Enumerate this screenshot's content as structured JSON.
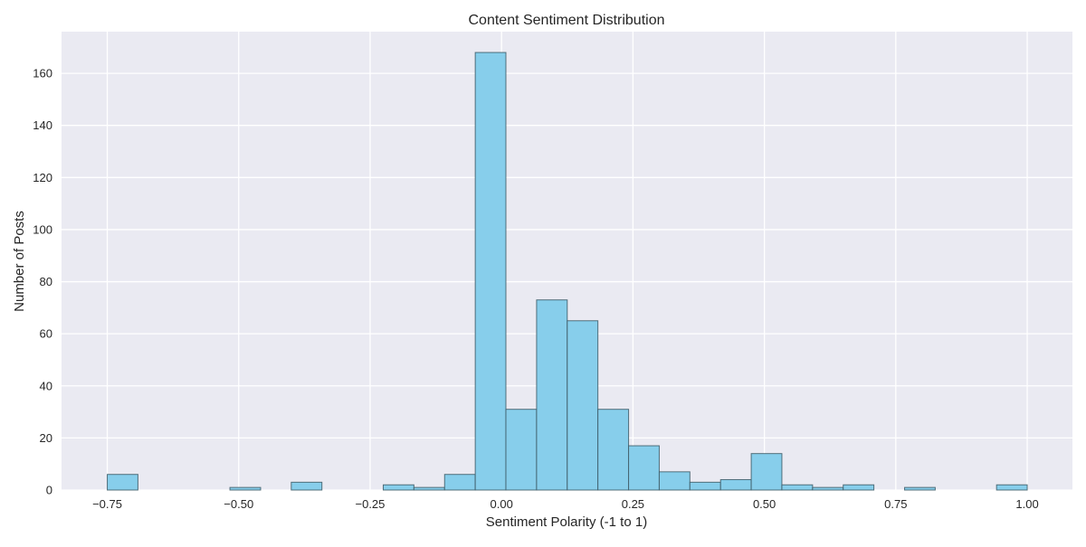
{
  "chart_data": {
    "type": "bar",
    "title": "Content Sentiment Distribution",
    "xlabel": "Sentiment Polarity (-1 to 1)",
    "ylabel": "Number of Posts",
    "xlim": [
      -0.837,
      1.086
    ],
    "ylim": [
      0,
      176
    ],
    "xticks": [
      -0.75,
      -0.5,
      -0.25,
      0.0,
      0.25,
      0.5,
      0.75,
      1.0
    ],
    "xtick_labels": [
      "−0.75",
      "−0.50",
      "−0.25",
      "0.00",
      "0.25",
      "0.50",
      "0.75",
      "1.00"
    ],
    "yticks": [
      0,
      20,
      40,
      60,
      80,
      100,
      120,
      140,
      160
    ],
    "ytick_labels": [
      "0",
      "20",
      "40",
      "60",
      "80",
      "100",
      "120",
      "140",
      "160"
    ],
    "grid": true,
    "bin_edges": [
      -0.75,
      -0.6917,
      -0.6333,
      -0.575,
      -0.5167,
      -0.4583,
      -0.4,
      -0.3417,
      -0.2833,
      -0.225,
      -0.1667,
      -0.1083,
      -0.05,
      0.0083,
      0.0667,
      0.125,
      0.1833,
      0.2417,
      0.3,
      0.3583,
      0.4167,
      0.475,
      0.5333,
      0.5917,
      0.65,
      0.7083,
      0.7667,
      0.825,
      0.8833,
      0.9417,
      1.0
    ],
    "values": [
      6,
      0,
      0,
      0,
      1,
      0,
      3,
      0,
      0,
      2,
      1,
      6,
      168,
      31,
      73,
      65,
      31,
      17,
      7,
      3,
      4,
      14,
      2,
      1,
      2,
      0,
      1,
      0,
      0,
      2
    ],
    "colors": {
      "bar_fill": "#87ceeb",
      "bar_edge": "#3d5a66",
      "plot_background": "#eaeaf2",
      "grid": "#ffffff"
    }
  }
}
